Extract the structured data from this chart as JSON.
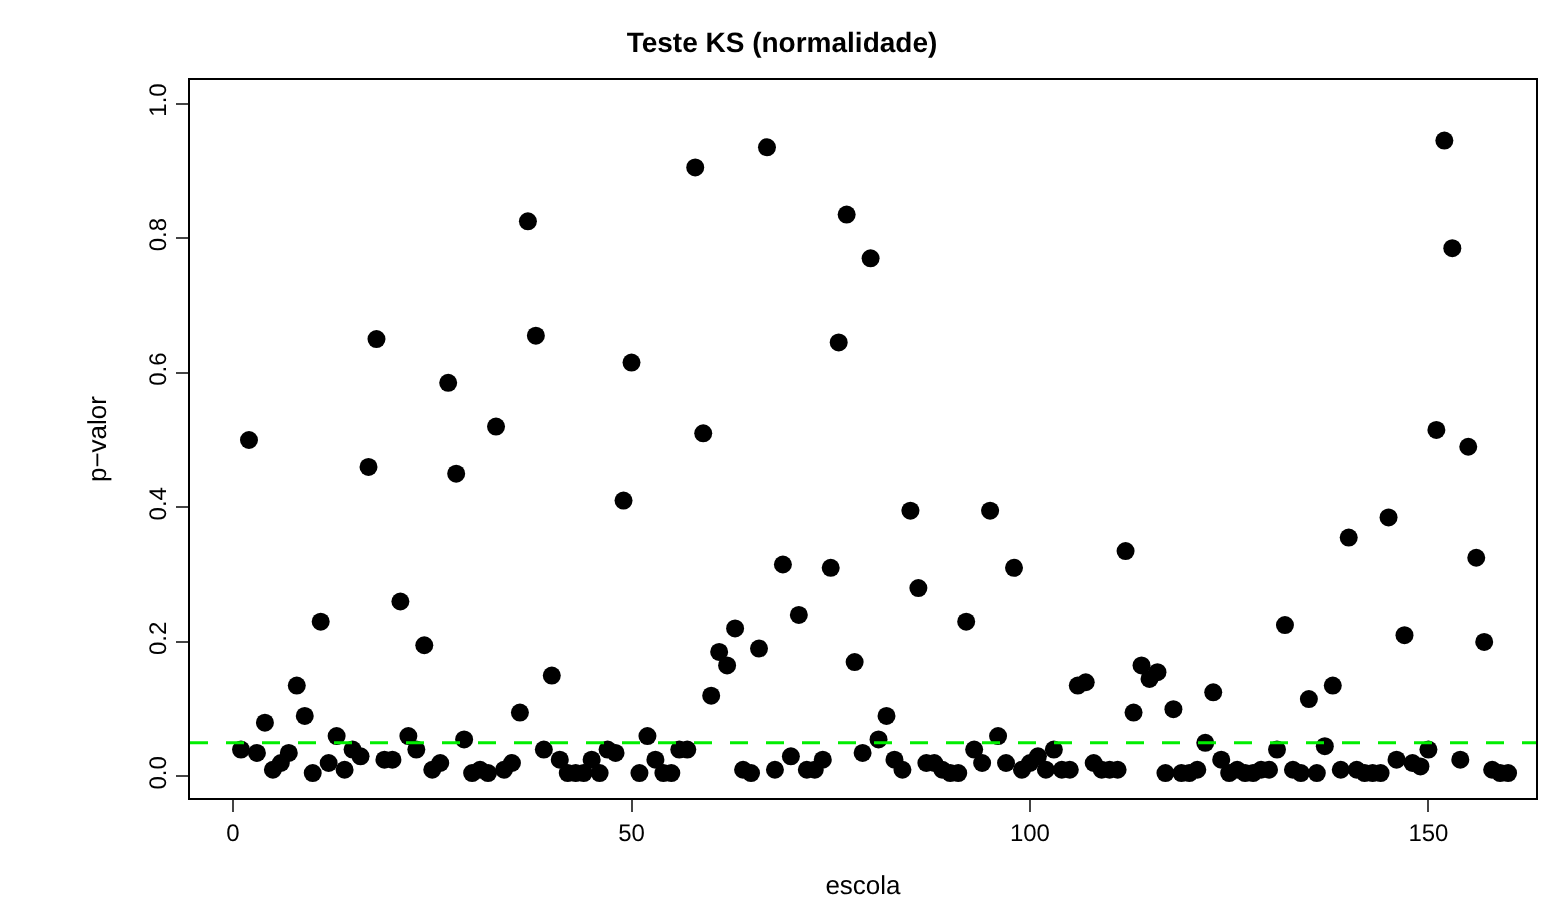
{
  "chart_data": {
    "type": "scatter",
    "title": "Teste KS (normalidade)",
    "xlabel": "escola",
    "ylabel": "p−valor",
    "x": [
      1,
      2,
      3,
      4,
      5,
      6,
      7,
      8,
      9,
      10,
      11,
      12,
      13,
      14,
      15,
      16,
      17,
      18,
      19,
      20,
      21,
      22,
      23,
      24,
      25,
      26,
      27,
      28,
      29,
      30,
      31,
      32,
      33,
      34,
      35,
      36,
      37,
      38,
      39,
      40,
      41,
      42,
      43,
      44,
      45,
      46,
      47,
      48,
      49,
      50,
      51,
      52,
      53,
      54,
      55,
      56,
      57,
      58,
      59,
      60,
      61,
      62,
      63,
      64,
      65,
      66,
      67,
      68,
      69,
      70,
      71,
      72,
      73,
      74,
      75,
      76,
      77,
      78,
      79,
      80,
      81,
      82,
      83,
      84,
      85,
      86,
      87,
      88,
      89,
      90,
      91,
      92,
      93,
      94,
      95,
      96,
      97,
      98,
      99,
      100,
      101,
      102,
      103,
      104,
      105,
      106,
      107,
      108,
      109,
      110,
      111,
      112,
      113,
      114,
      115,
      116,
      117,
      118,
      119,
      120,
      121,
      122,
      123,
      124,
      125,
      126,
      127,
      128,
      129,
      130,
      131,
      132,
      133,
      134,
      135,
      136,
      137,
      138,
      139,
      140,
      141,
      142,
      143,
      144,
      145,
      146,
      147,
      148,
      149,
      150,
      151,
      152,
      153,
      154,
      155,
      156,
      157,
      158,
      159,
      160
    ],
    "values": [
      0.04,
      0.5,
      0.035,
      0.08,
      0.01,
      0.02,
      0.035,
      0.135,
      0.09,
      0.005,
      0.23,
      0.02,
      0.06,
      0.01,
      0.04,
      0.03,
      0.46,
      0.65,
      0.025,
      0.025,
      0.26,
      0.06,
      0.04,
      0.195,
      0.01,
      0.02,
      0.585,
      0.45,
      0.055,
      0.005,
      0.01,
      0.005,
      0.52,
      0.01,
      0.02,
      0.095,
      0.825,
      0.655,
      0.04,
      0.15,
      0.025,
      0.005,
      0.005,
      0.005,
      0.025,
      0.005,
      0.04,
      0.035,
      0.41,
      0.615,
      0.005,
      0.06,
      0.025,
      0.005,
      0.005,
      0.04,
      0.04,
      0.905,
      0.51,
      0.12,
      0.185,
      0.165,
      0.22,
      0.01,
      0.005,
      0.19,
      0.935,
      0.01,
      0.315,
      0.03,
      0.24,
      0.01,
      0.01,
      0.025,
      0.31,
      0.645,
      0.835,
      0.17,
      0.035,
      0.77,
      0.055,
      0.09,
      0.025,
      0.01,
      0.395,
      0.28,
      0.02,
      0.02,
      0.01,
      0.005,
      0.005,
      0.23,
      0.04,
      0.02,
      0.395,
      0.06,
      0.02,
      0.31,
      0.01,
      0.02,
      0.03,
      0.01,
      0.04,
      0.01,
      0.01,
      0.135,
      0.14,
      0.02,
      0.01,
      0.01,
      0.01,
      0.335,
      0.095,
      0.165,
      0.145,
      0.155,
      0.005,
      0.1,
      0.005,
      0.005,
      0.01,
      0.05,
      0.125,
      0.025,
      0.005,
      0.01,
      0.005,
      0.005,
      0.01,
      0.01,
      0.04,
      0.225,
      0.01,
      0.005,
      0.115,
      0.005,
      0.045,
      0.135,
      0.01,
      0.355,
      0.01,
      0.005,
      0.005,
      0.005,
      0.385,
      0.025,
      0.21,
      0.02,
      0.015,
      0.04,
      0.515,
      0.945,
      0.785,
      0.025,
      0.49,
      0.325,
      0.2,
      0.01,
      0.005,
      0.005
    ],
    "color": "#000000",
    "marker": "circle",
    "xlim": [
      -5.4,
      163.5
    ],
    "xticks": [
      0,
      50,
      100,
      150
    ],
    "ylim": [
      -0.032,
      1.035
    ],
    "yticks": [
      {
        "value": 0,
        "label": "0.0"
      },
      {
        "value": 0.2,
        "label": "0.2"
      },
      {
        "value": 0.4,
        "label": "0.4"
      },
      {
        "value": 0.6,
        "label": "0.6"
      },
      {
        "value": 0.8,
        "label": "0.8"
      },
      {
        "value": 1,
        "label": "1.0"
      }
    ],
    "ref_lines": [
      {
        "axis": "y",
        "value": 0.05,
        "color": "#00ee00",
        "line_style": "dashed"
      }
    ]
  }
}
